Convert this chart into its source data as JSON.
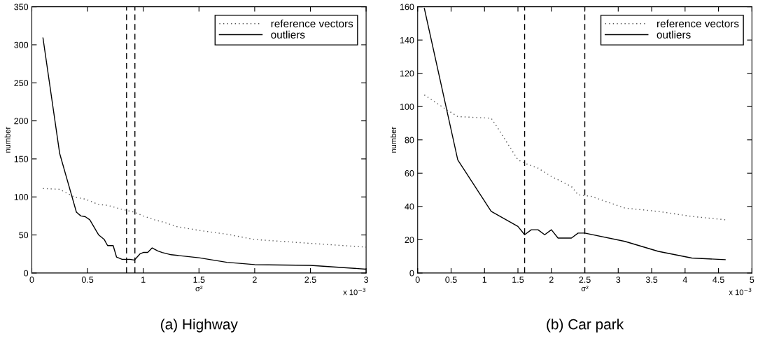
{
  "chart_data": [
    {
      "type": "line",
      "xlabel": "σ²",
      "ylabel": "number",
      "annotations": [
        "x 10$^{−3}$",
        "(a) Highway"
      ],
      "xlim": [
        0,
        3
      ],
      "xticks": [
        0,
        0.5,
        1,
        1.5,
        2,
        2.5,
        3
      ],
      "ylim": [
        0,
        350
      ],
      "yticks": [
        0,
        50,
        100,
        150,
        200,
        250,
        300,
        350
      ],
      "legend": "top right",
      "grid": false,
      "ref_lines": [
        {
          "axis": "x",
          "value": 0.85,
          "color": "#000000",
          "line_style": "dashed"
        },
        {
          "axis": "x",
          "value": 0.925,
          "color": "#000000",
          "line_style": "dashed"
        }
      ],
      "series": [
        {
          "name": "reference vectors",
          "color": "#555555",
          "line_style": "dotted",
          "x": [
            0.1,
            0.25,
            0.38,
            0.48,
            0.6,
            0.68,
            0.8,
            0.92,
            1.0,
            1.1,
            1.2,
            1.3,
            1.5,
            1.75,
            2.0,
            2.5,
            3.0
          ],
          "values": [
            111,
            110,
            100,
            97,
            90,
            89,
            84,
            80,
            75,
            70,
            66,
            61,
            56,
            51,
            44,
            39,
            34
          ]
        },
        {
          "name": "outliers",
          "color": "#000000",
          "line_style": "solid",
          "x": [
            0.1,
            0.25,
            0.4,
            0.44,
            0.48,
            0.52,
            0.6,
            0.65,
            0.68,
            0.73,
            0.76,
            0.81,
            0.88,
            0.92,
            0.97,
            1.0,
            1.04,
            1.08,
            1.13,
            1.17,
            1.25,
            1.5,
            1.75,
            2.0,
            2.5,
            3.0
          ],
          "values": [
            309,
            157,
            80,
            75,
            74,
            70,
            50,
            44,
            36,
            36,
            21,
            18,
            18,
            17,
            25,
            27,
            27,
            33,
            29,
            27,
            24,
            20,
            14,
            11,
            10,
            5
          ]
        }
      ]
    },
    {
      "type": "line",
      "xlabel": "σ²",
      "ylabel": "number",
      "annotations": [
        "x 10$^{−3}$",
        "(b) Car park"
      ],
      "xlim": [
        0,
        5
      ],
      "xticks": [
        0,
        0.5,
        1,
        1.5,
        2,
        2.5,
        3,
        3.5,
        4,
        4.5,
        5
      ],
      "ylim": [
        0,
        160
      ],
      "yticks": [
        0,
        20,
        40,
        60,
        80,
        100,
        120,
        140,
        160
      ],
      "legend": "top right",
      "grid": false,
      "ref_lines": [
        {
          "axis": "x",
          "value": 1.6,
          "color": "#000000",
          "line_style": "dashed"
        },
        {
          "axis": "x",
          "value": 2.5,
          "color": "#000000",
          "line_style": "dashed"
        }
      ],
      "series": [
        {
          "name": "reference vectors",
          "color": "#555555",
          "line_style": "dotted",
          "x": [
            0.1,
            0.4,
            0.6,
            1.1,
            1.2,
            1.5,
            1.6,
            1.8,
            2.0,
            2.3,
            2.4,
            2.6,
            3.1,
            3.6,
            4.1,
            4.6
          ],
          "values": [
            107,
            99,
            94,
            93,
            87,
            68,
            66,
            63,
            58,
            52,
            47,
            46,
            39,
            37,
            34,
            32
          ]
        },
        {
          "name": "outliers",
          "color": "#000000",
          "line_style": "solid",
          "x": [
            0.1,
            0.6,
            1.1,
            1.5,
            1.6,
            1.7,
            1.8,
            1.9,
            2.0,
            2.1,
            2.3,
            2.4,
            2.5,
            3.1,
            3.6,
            4.1,
            4.6
          ],
          "values": [
            159,
            68,
            37,
            28,
            23,
            26,
            26,
            23,
            26,
            21,
            21,
            24,
            24,
            19,
            13,
            9,
            8
          ]
        }
      ]
    }
  ]
}
